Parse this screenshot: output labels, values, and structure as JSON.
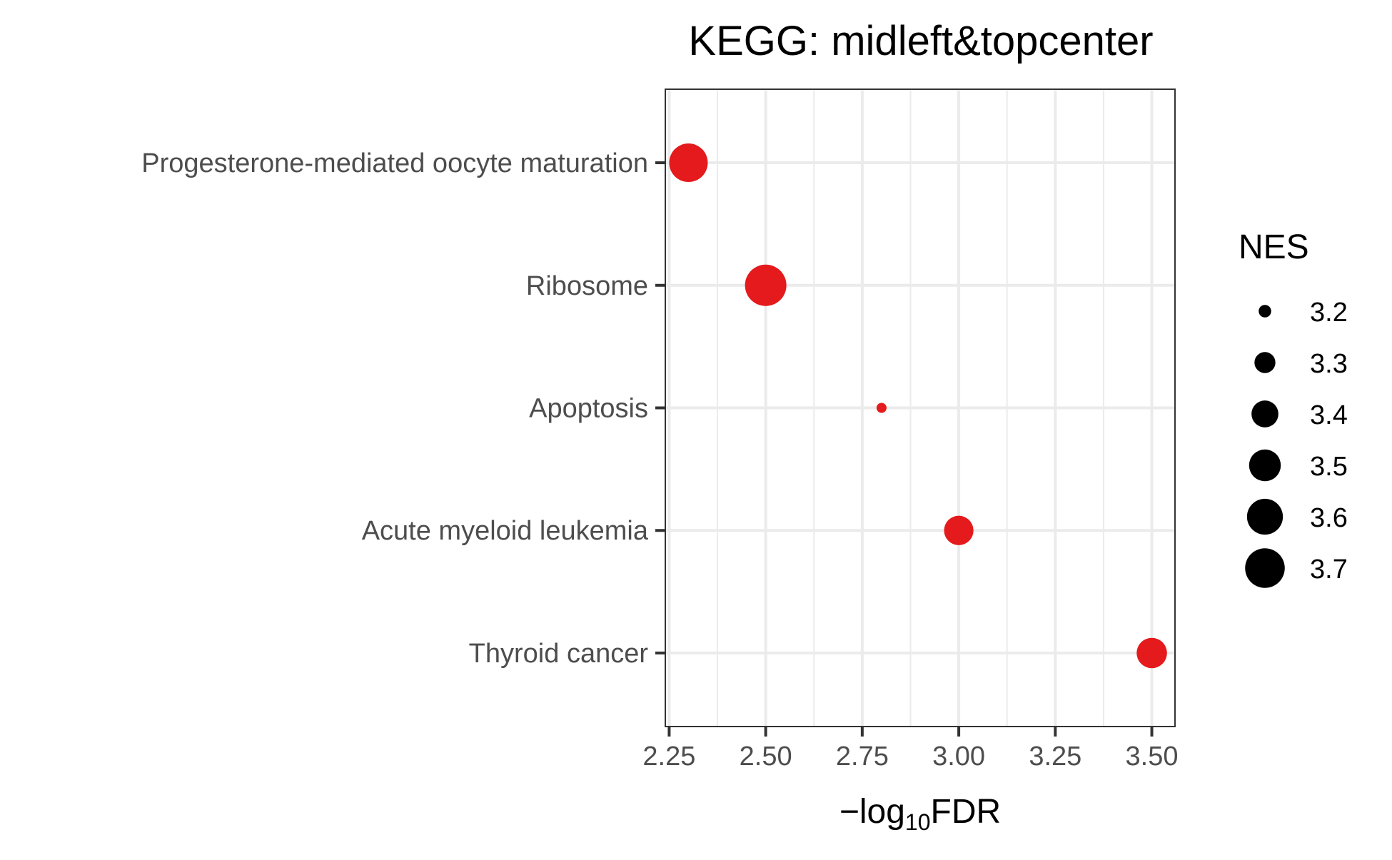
{
  "chart_data": {
    "type": "scatter",
    "title": "KEGG: midleft&topcenter",
    "xlabel": {
      "prefix": "−log",
      "subscript": "10",
      "suffix": "FDR"
    },
    "ylabel": "",
    "xlim": [
      2.24,
      3.56
    ],
    "x_ticks": [
      2.25,
      2.5,
      2.75,
      3.0,
      3.25,
      3.5
    ],
    "x_tick_labels": [
      "2.25",
      "2.50",
      "2.75",
      "3.00",
      "3.25",
      "3.50"
    ],
    "categories": [
      "Progesterone-mediated oocyte maturation",
      "Ribosome",
      "Apoptosis",
      "Acute myeloid leukemia",
      "Thyroid cancer"
    ],
    "points": [
      {
        "category": "Progesterone-mediated oocyte maturation",
        "x": 2.3,
        "nes": 3.67
      },
      {
        "category": "Ribosome",
        "x": 2.5,
        "nes": 3.75
      },
      {
        "category": "Apoptosis",
        "x": 2.8,
        "nes": 3.18
      },
      {
        "category": "Acute myeloid leukemia",
        "x": 3.0,
        "nes": 3.45
      },
      {
        "category": "Thyroid cancer",
        "x": 3.5,
        "nes": 3.47
      }
    ],
    "point_color": "#e41a1c",
    "grid": true,
    "legend": {
      "title": "NES",
      "placement": "right",
      "entries": [
        {
          "label": "3.2",
          "value": 3.2
        },
        {
          "label": "3.3",
          "value": 3.3
        },
        {
          "label": "3.4",
          "value": 3.4
        },
        {
          "label": "3.5",
          "value": 3.5
        },
        {
          "label": "3.6",
          "value": 3.6
        },
        {
          "label": "3.7",
          "value": 3.7
        }
      ],
      "color": "#000000"
    }
  }
}
